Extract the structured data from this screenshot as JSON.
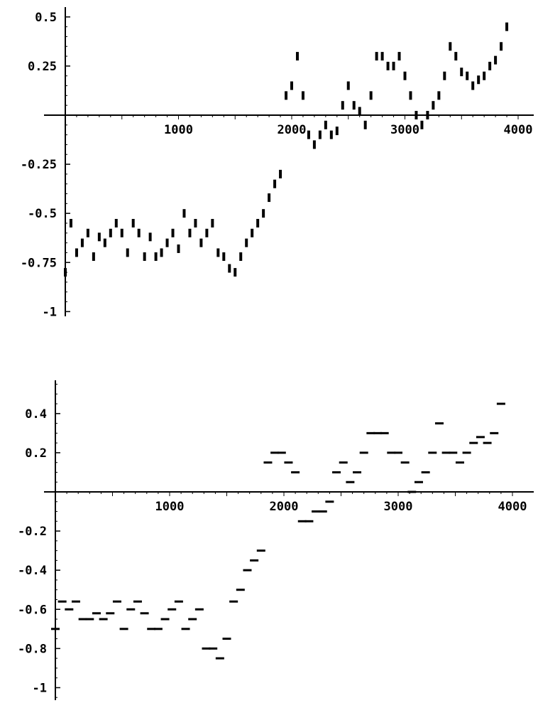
{
  "chart_data": [
    {
      "type": "scatter",
      "title": "",
      "xlabel": "",
      "ylabel": "",
      "xlim": [
        0,
        4100
      ],
      "ylim": [
        -1.05,
        0.55
      ],
      "x_ticks": [
        {
          "value": 1000,
          "label": "1000"
        },
        {
          "value": 2000,
          "label": "2000"
        },
        {
          "value": 3000,
          "label": "3000"
        },
        {
          "value": 4000,
          "label": "4000"
        }
      ],
      "y_ticks": [
        {
          "value": 0.5,
          "label": "0.5"
        },
        {
          "value": 0.25,
          "label": "0.25"
        },
        {
          "value": -0.25,
          "label": "-0.25"
        },
        {
          "value": -0.5,
          "label": "-0.5"
        },
        {
          "value": -0.75,
          "label": "-0.75"
        },
        {
          "value": -1,
          "label": "-1"
        }
      ],
      "grid": false,
      "marker_color": "#000000",
      "series": [
        {
          "x": [
            0,
            50,
            100,
            150,
            200,
            250,
            300,
            350,
            400,
            450,
            500,
            550,
            600,
            650,
            700,
            750,
            800,
            850,
            900,
            950,
            1000,
            1050,
            1100,
            1150,
            1200,
            1250,
            1300,
            1350,
            1400,
            1450,
            1500,
            1550,
            1600,
            1650,
            1700,
            1750,
            1800,
            1850,
            1900,
            1950,
            2000,
            2050,
            2100,
            2150,
            2200,
            2250,
            2300,
            2350,
            2400,
            2450,
            2500,
            2550,
            2600,
            2650,
            2700,
            2750,
            2800,
            2850,
            2900,
            2950,
            3000,
            3050,
            3100,
            3150,
            3200,
            3250,
            3300,
            3350,
            3400,
            3450,
            3500,
            3550,
            3600,
            3650,
            3700,
            3750,
            3800,
            3850,
            3900
          ],
          "y": [
            -0.8,
            -0.55,
            -0.7,
            -0.65,
            -0.6,
            -0.72,
            -0.62,
            -0.65,
            -0.6,
            -0.55,
            -0.6,
            -0.7,
            -0.55,
            -0.6,
            -0.72,
            -0.62,
            -0.72,
            -0.7,
            -0.65,
            -0.6,
            -0.68,
            -0.5,
            -0.6,
            -0.55,
            -0.65,
            -0.6,
            -0.55,
            -0.7,
            -0.72,
            -0.78,
            -0.8,
            -0.72,
            -0.65,
            -0.6,
            -0.55,
            -0.5,
            -0.42,
            -0.35,
            -0.3,
            0.1,
            0.15,
            0.3,
            0.1,
            -0.1,
            -0.15,
            -0.1,
            -0.05,
            -0.1,
            -0.08,
            0.05,
            0.15,
            0.05,
            0.02,
            -0.05,
            0.1,
            0.3,
            0.3,
            0.25,
            0.25,
            0.3,
            0.2,
            0.1,
            0.0,
            -0.05,
            0.0,
            0.05,
            0.1,
            0.2,
            0.35,
            0.3,
            0.22,
            0.2,
            0.15,
            0.18,
            0.2,
            0.25,
            0.28,
            0.35,
            0.45
          ]
        }
      ]
    },
    {
      "type": "scatter",
      "title": "",
      "xlabel": "",
      "ylabel": "",
      "xlim": [
        0,
        4100
      ],
      "ylim": [
        -1.05,
        0.57
      ],
      "x_ticks": [
        {
          "value": 1000,
          "label": "1000"
        },
        {
          "value": 2000,
          "label": "2000"
        },
        {
          "value": 3000,
          "label": "3000"
        },
        {
          "value": 4000,
          "label": "4000"
        }
      ],
      "y_ticks": [
        {
          "value": 0.4,
          "label": "0.4"
        },
        {
          "value": 0.2,
          "label": "0.2"
        },
        {
          "value": -0.2,
          "label": "-0.2"
        },
        {
          "value": -0.4,
          "label": "-0.4"
        },
        {
          "value": -0.6,
          "label": "-0.6"
        },
        {
          "value": -0.8,
          "label": "-0.8"
        },
        {
          "value": -1,
          "label": "-1"
        }
      ],
      "grid": false,
      "marker_color": "#000000",
      "series": [
        {
          "x": [
            0,
            60,
            120,
            180,
            240,
            300,
            360,
            420,
            480,
            540,
            600,
            660,
            720,
            780,
            840,
            900,
            960,
            1020,
            1080,
            1140,
            1200,
            1260,
            1320,
            1380,
            1440,
            1500,
            1560,
            1620,
            1680,
            1740,
            1800,
            1860,
            1920,
            1980,
            2040,
            2100,
            2160,
            2220,
            2280,
            2340,
            2400,
            2460,
            2520,
            2580,
            2640,
            2700,
            2760,
            2820,
            2880,
            2940,
            3000,
            3060,
            3120,
            3180,
            3240,
            3300,
            3360,
            3420,
            3480,
            3540,
            3600,
            3660,
            3720,
            3780,
            3840,
            3900
          ],
          "y": [
            -0.7,
            -0.56,
            -0.6,
            -0.56,
            -0.65,
            -0.65,
            -0.62,
            -0.65,
            -0.62,
            -0.56,
            -0.7,
            -0.6,
            -0.56,
            -0.62,
            -0.7,
            -0.7,
            -0.65,
            -0.6,
            -0.56,
            -0.7,
            -0.65,
            -0.6,
            -0.8,
            -0.8,
            -0.85,
            -0.75,
            -0.56,
            -0.5,
            -0.4,
            -0.35,
            -0.3,
            0.15,
            0.2,
            0.2,
            0.15,
            0.1,
            -0.15,
            -0.15,
            -0.1,
            -0.1,
            -0.05,
            0.1,
            0.15,
            0.05,
            0.1,
            0.2,
            0.3,
            0.3,
            0.3,
            0.2,
            0.2,
            0.15,
            0.0,
            0.05,
            0.1,
            0.2,
            0.35,
            0.2,
            0.2,
            0.15,
            0.2,
            0.25,
            0.28,
            0.25,
            0.3,
            0.45
          ]
        }
      ]
    }
  ]
}
